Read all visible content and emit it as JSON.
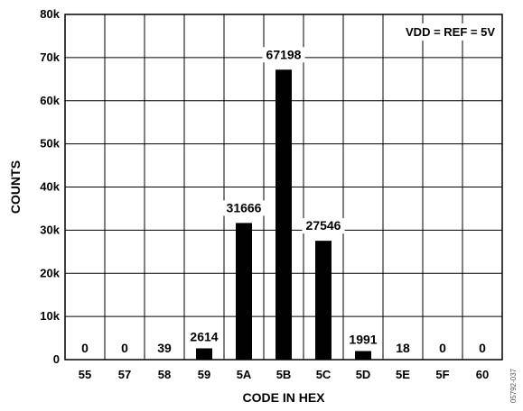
{
  "chart_data": {
    "type": "bar",
    "categories": [
      "55",
      "57",
      "58",
      "59",
      "5A",
      "5B",
      "5C",
      "5D",
      "5E",
      "5F",
      "60"
    ],
    "values": [
      0,
      0,
      39,
      2614,
      31666,
      67198,
      27546,
      1991,
      18,
      0,
      0
    ],
    "value_labels": [
      "0",
      "0",
      "39",
      "2614",
      "31666",
      "67198",
      "27546",
      "1991",
      "18",
      "0",
      "0"
    ],
    "title": "",
    "xlabel": "CODE IN HEX",
    "ylabel": "COUNTS",
    "ylim": [
      0,
      80000
    ],
    "yticks": [
      0,
      10000,
      20000,
      30000,
      40000,
      50000,
      60000,
      70000,
      80000
    ],
    "ytick_labels": [
      "0",
      "10k",
      "20k",
      "30k",
      "40k",
      "50k",
      "60k",
      "70k",
      "80k"
    ],
    "grid": true,
    "bar_color": "#000000",
    "annotation": "VDD = REF = 5V",
    "figure_id": "05792-037"
  }
}
